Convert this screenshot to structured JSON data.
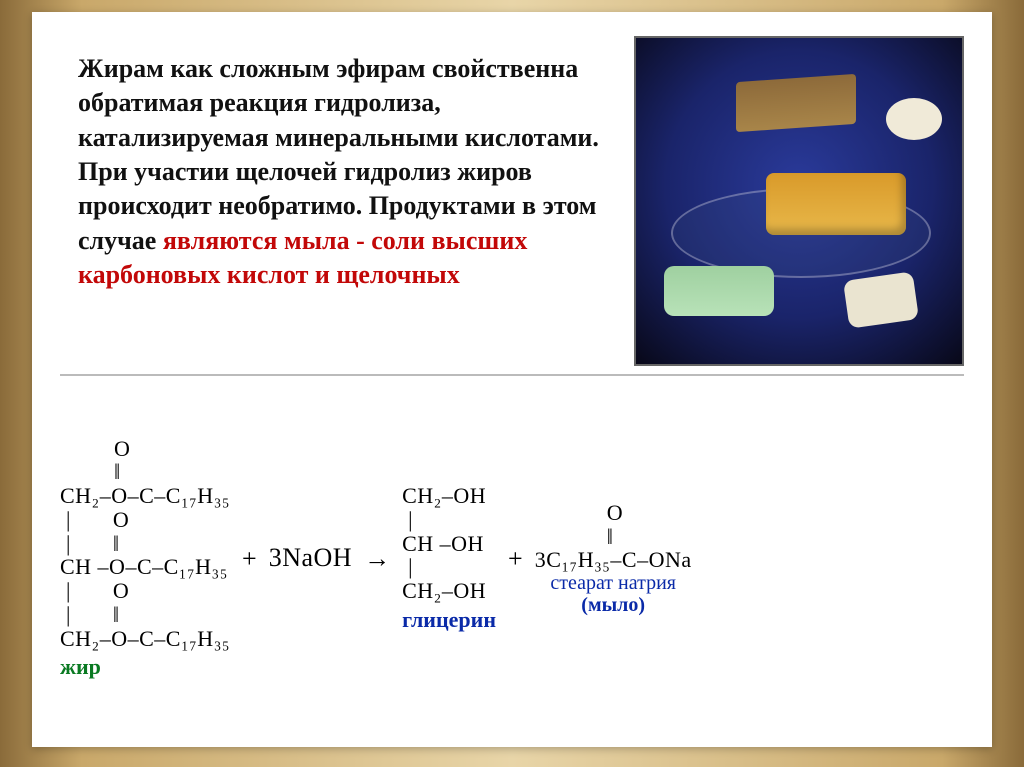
{
  "paragraph": {
    "black1": "Жирам как сложным эфирам свойственна обратимая реакция гидролиза, катализируемая минеральными кислотами. При участии щелочей гидролиз жиров происходит необратимо. Продуктами в этом случае ",
    "red": "являются мыла - соли высших карбоновых кислот и щелочных"
  },
  "equation": {
    "fat": {
      "l1": "         O",
      "l2": "         ‖",
      "l3": "CH₂–O–C–C₁₇H₃₅",
      "l4": " |       O",
      "l5": " |       ‖",
      "l6": "CH –O–C–C₁₇H₃₅",
      "l7": " |       O",
      "l8": " |       ‖",
      "l9": "CH₂–O–C–C₁₇H₃₅",
      "label": "жир"
    },
    "plus1": "+",
    "naoh": "3NaOH",
    "arrow": "→",
    "glycerol": {
      "l1": "CH₂–OH",
      "l2": " |",
      "l3": "CH –OH",
      "l4": " |",
      "l5": "CH₂–OH",
      "label": "глицерин"
    },
    "plus2": "+",
    "soap": {
      "l1": "            O",
      "l2": "            ‖",
      "l3": "3C₁₇H₃₅–C–ONa",
      "label1": "стеарат натрия",
      "label2": "(мыло)"
    }
  },
  "colors": {
    "redtext": "#c20808",
    "fatlabel": "#0a7a22",
    "bluelabel": "#0a2aa8"
  }
}
